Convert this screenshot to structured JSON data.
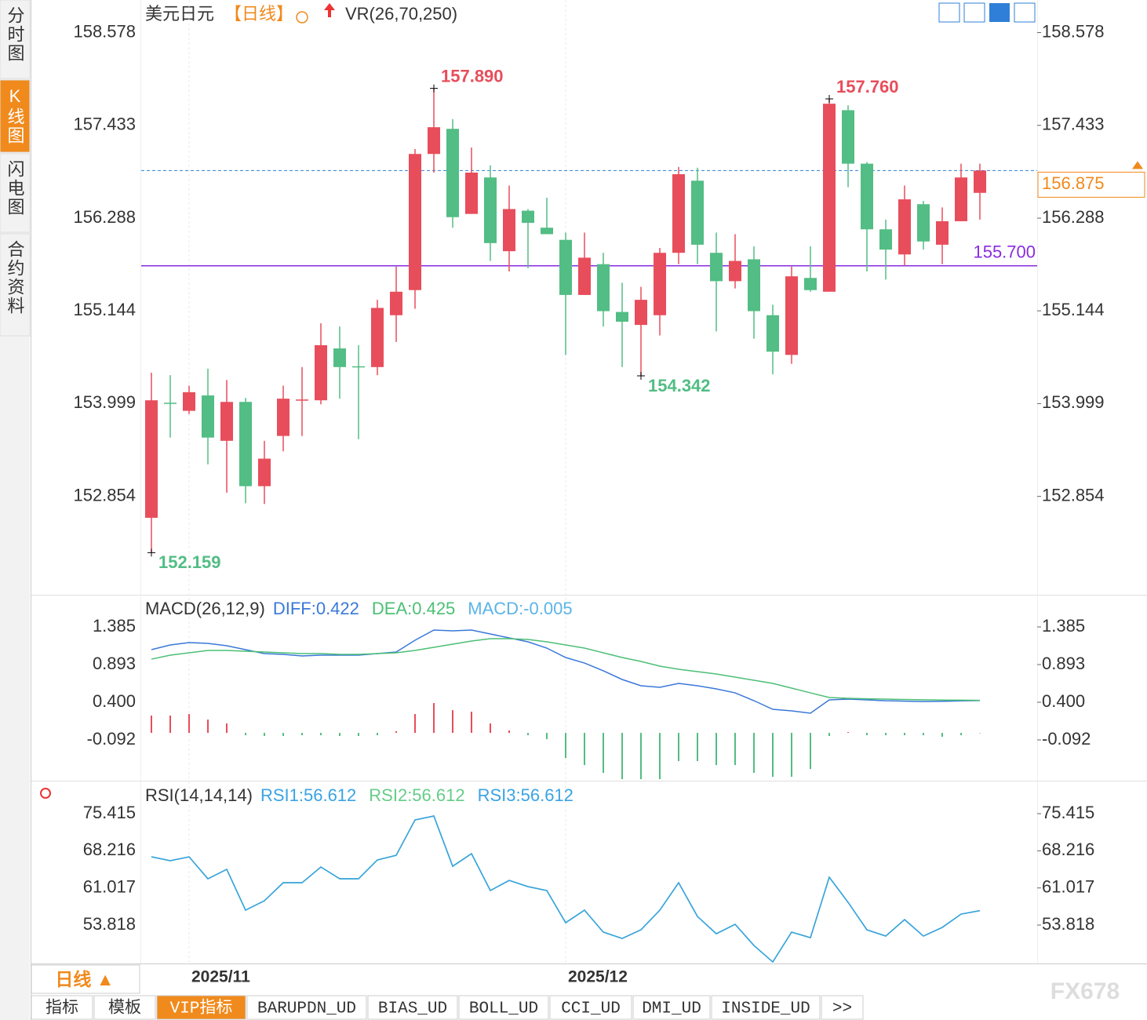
{
  "ui": {
    "sidebar": [
      "分时图",
      "K线图",
      "闪电图",
      "合约资料"
    ],
    "period_button": "日线 ▲",
    "tabs": [
      "指标",
      "模板",
      "VIP指标",
      "BARUPDN_UD",
      "BIAS_UD",
      "BOLL_UD",
      "CCI_UD",
      "DMI_UD",
      "INSIDE_UD",
      ">>"
    ],
    "watermark": "FX678"
  },
  "chart_data": [
    {
      "type": "candlestick",
      "title": "美元日元",
      "period": "【日线】",
      "indicator": "VR(26,70,250)",
      "categories": [
        null,
        null,
        "2025/11",
        null,
        null,
        null,
        null,
        null,
        null,
        null,
        null,
        null,
        null,
        null,
        null,
        null,
        null,
        null,
        null,
        null,
        null,
        null,
        "2025/12",
        null,
        null,
        null,
        null,
        null,
        null,
        null,
        null,
        null,
        null,
        null,
        null,
        null,
        null,
        null,
        null,
        null,
        null,
        null,
        null,
        null,
        null
      ],
      "open": [
        152.59,
        154.01,
        153.91,
        154.1,
        153.54,
        154.02,
        152.98,
        153.6,
        154.04,
        154.04,
        154.68,
        154.46,
        154.45,
        155.09,
        155.4,
        157.08,
        157.39,
        156.34,
        156.79,
        155.88,
        156.38,
        156.17,
        156.02,
        155.34,
        155.72,
        155.13,
        154.97,
        155.09,
        155.86,
        156.75,
        155.86,
        155.51,
        155.78,
        155.09,
        154.6,
        155.55,
        155.38,
        157.62,
        156.96,
        156.15,
        155.84,
        156.46,
        155.96,
        156.25,
        156.6
      ],
      "high": [
        154.38,
        154.35,
        154.22,
        154.43,
        154.29,
        154.07,
        153.54,
        154.22,
        154.45,
        154.99,
        154.95,
        154.72,
        155.28,
        155.69,
        157.14,
        157.89,
        157.51,
        157.16,
        156.94,
        156.69,
        156.4,
        156.54,
        156.11,
        156.11,
        155.86,
        155.49,
        155.44,
        155.92,
        156.92,
        156.91,
        156.11,
        156.09,
        155.94,
        155.22,
        155.69,
        155.94,
        157.76,
        157.68,
        156.98,
        156.27,
        156.69,
        156.5,
        156.42,
        156.96,
        156.96
      ],
      "low": [
        152.159,
        153.58,
        153.87,
        153.25,
        152.9,
        152.77,
        152.76,
        153.41,
        153.6,
        153.99,
        154.06,
        153.56,
        154.35,
        154.76,
        155.17,
        156.85,
        156.17,
        156.34,
        155.76,
        155.63,
        155.67,
        156.09,
        154.6,
        155.34,
        154.95,
        154.45,
        154.342,
        154.84,
        155.72,
        155.72,
        154.89,
        155.42,
        154.8,
        154.36,
        154.49,
        155.38,
        155.38,
        156.67,
        155.63,
        155.53,
        155.7,
        155.9,
        155.72,
        156.25,
        156.27
      ],
      "close": [
        154.04,
        154.0,
        154.14,
        153.58,
        154.02,
        152.98,
        153.32,
        154.06,
        154.05,
        154.72,
        154.45,
        154.45,
        155.18,
        155.38,
        157.08,
        157.41,
        156.3,
        156.85,
        155.98,
        156.4,
        156.23,
        156.09,
        155.34,
        155.8,
        155.14,
        155.01,
        155.28,
        155.86,
        156.83,
        155.96,
        155.51,
        155.76,
        155.14,
        154.64,
        155.57,
        155.4,
        157.7,
        156.96,
        156.15,
        155.9,
        156.52,
        156.0,
        156.25,
        156.79,
        156.875
      ],
      "up_color": "#e84d5b",
      "down_color": "#52bd84",
      "annotations": [
        {
          "value": 157.89,
          "label": "157.890"
        },
        {
          "value": 157.76,
          "label": "157.760"
        },
        {
          "value": 154.342,
          "label": "154.342"
        },
        {
          "value": 152.159,
          "label": "152.159"
        }
      ],
      "hline": {
        "value": 155.7,
        "label": "155.700",
        "color": "#8a2be2"
      },
      "last": 156.875,
      "ylim": [
        151.65,
        158.98
      ],
      "yticks": [
        158.578,
        157.433,
        156.288,
        155.144,
        153.999,
        152.854
      ]
    },
    {
      "type": "macd",
      "title": "MACD(26,12,9)",
      "series": [
        {
          "name": "DIFF:0.422",
          "color": "#3a78d8",
          "values": [
            1.088,
            1.149,
            1.18,
            1.17,
            1.139,
            1.088,
            1.036,
            1.026,
            1.006,
            1.016,
            1.016,
            1.016,
            1.036,
            1.057,
            1.211,
            1.344,
            1.334,
            1.344,
            1.293,
            1.241,
            1.19,
            1.108,
            0.985,
            0.913,
            0.811,
            0.698,
            0.616,
            0.595,
            0.647,
            0.616,
            0.575,
            0.523,
            0.421,
            0.308,
            0.288,
            0.257,
            0.431,
            0.441,
            0.431,
            0.42,
            0.415,
            0.41,
            0.412,
            0.418,
            0.422
          ]
        },
        {
          "name": "DEA:0.425",
          "color": "#4cbf75",
          "values": [
            0.964,
            1.016,
            1.047,
            1.077,
            1.077,
            1.067,
            1.057,
            1.047,
            1.036,
            1.036,
            1.026,
            1.026,
            1.036,
            1.047,
            1.077,
            1.118,
            1.159,
            1.2,
            1.231,
            1.231,
            1.221,
            1.19,
            1.149,
            1.108,
            1.047,
            0.985,
            0.934,
            0.872,
            0.831,
            0.8,
            0.77,
            0.729,
            0.688,
            0.647,
            0.585,
            0.523,
            0.462,
            0.452,
            0.446,
            0.441,
            0.436,
            0.432,
            0.429,
            0.427,
            0.425
          ]
        },
        {
          "name": "MACD:-0.005",
          "color": "#5ab4e8",
          "values": [
            0.226,
            0.226,
            0.246,
            0.174,
            0.123,
            -0.031,
            -0.041,
            -0.041,
            -0.031,
            -0.031,
            -0.041,
            -0.041,
            -0.031,
            0.021,
            0.246,
            0.39,
            0.297,
            0.277,
            0.123,
            0.031,
            -0.031,
            -0.082,
            -0.328,
            -0.421,
            -0.523,
            -0.605,
            -0.605,
            -0.605,
            -0.369,
            -0.369,
            -0.421,
            -0.421,
            -0.523,
            -0.574,
            -0.574,
            -0.472,
            -0.041,
            0.01,
            -0.031,
            -0.031,
            -0.031,
            -0.031,
            -0.051,
            -0.031,
            -0.005
          ]
        }
      ],
      "up_color": "#e84d5b",
      "down_color": "#52bd84",
      "ylim": [
        -0.625,
        1.785
      ],
      "yticks": [
        1.385,
        0.893,
        {
          "value": 0.4,
          "label": "0.400"
        },
        -0.092
      ]
    },
    {
      "type": "line",
      "title": "RSI(14,14,14)",
      "series": [
        {
          "name": "RSI1:56.612",
          "color": "#3aa3e3",
          "values": [
            67.05,
            66.29,
            67.05,
            62.79,
            64.62,
            56.71,
            58.53,
            62.03,
            62.03,
            65.07,
            62.79,
            62.79,
            66.44,
            67.35,
            74.2,
            74.96,
            65.22,
            67.66,
            60.51,
            62.48,
            61.27,
            60.51,
            54.27,
            56.71,
            52.45,
            51.23,
            52.9,
            56.71,
            62.03,
            55.49,
            52.14,
            53.97,
            49.86,
            46.67,
            52.45,
            51.38,
            63.09,
            58.23,
            52.9,
            51.69,
            54.88,
            51.69,
            53.36,
            55.94,
            56.612
          ]
        },
        {
          "name": "RSI2:56.612",
          "color": "#66cc88",
          "values": [
            67.05,
            66.29,
            67.05,
            62.79,
            64.62,
            56.71,
            58.53,
            62.03,
            62.03,
            65.07,
            62.79,
            62.79,
            66.44,
            67.35,
            74.2,
            74.96,
            65.22,
            67.66,
            60.51,
            62.48,
            61.27,
            60.51,
            54.27,
            56.71,
            52.45,
            51.23,
            52.9,
            56.71,
            62.03,
            55.49,
            52.14,
            53.97,
            49.86,
            46.67,
            52.45,
            51.38,
            63.09,
            58.23,
            52.9,
            51.69,
            54.88,
            51.69,
            53.36,
            55.94,
            56.612
          ]
        },
        {
          "name": "RSI3:56.612",
          "color": "#3aa3e3",
          "values": [
            67.05,
            66.29,
            67.05,
            62.79,
            64.62,
            56.71,
            58.53,
            62.03,
            62.03,
            65.07,
            62.79,
            62.79,
            66.44,
            67.35,
            74.2,
            74.96,
            65.22,
            67.66,
            60.51,
            62.48,
            61.27,
            60.51,
            54.27,
            56.71,
            52.45,
            51.23,
            52.9,
            56.71,
            62.03,
            55.49,
            52.14,
            53.97,
            49.86,
            46.67,
            52.45,
            51.38,
            63.09,
            58.23,
            52.9,
            51.69,
            54.88,
            51.69,
            53.36,
            55.94,
            56.612
          ]
        }
      ],
      "ylim": [
        46.37,
        81.5
      ],
      "yticks": [
        75.415,
        68.216,
        61.017,
        53.818
      ]
    }
  ]
}
